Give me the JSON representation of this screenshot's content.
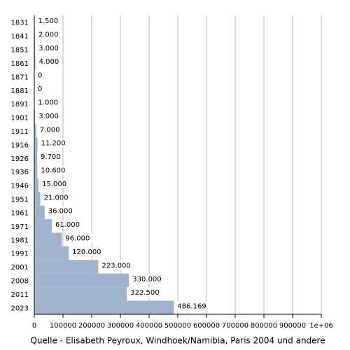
{
  "chart_data": {
    "type": "hbar",
    "categories": [
      "1831",
      "1841",
      "1851",
      "1861",
      "1871",
      "1881",
      "1891",
      "1901",
      "1911",
      "1916",
      "1926",
      "1936",
      "1946",
      "1951",
      "1961",
      "1971",
      "1981",
      "1991",
      "2001",
      "2008",
      "2011",
      "2023"
    ],
    "values": [
      1500,
      2000,
      3000,
      4000,
      0,
      0,
      1000,
      3000,
      7000,
      11200,
      9700,
      10600,
      15000,
      21000,
      36000,
      61000,
      96000,
      120000,
      223000,
      330000,
      322500,
      486169
    ],
    "value_labels": [
      "1.500",
      "2.000",
      "3.000",
      "4.000",
      "0",
      "0",
      "1.000",
      "3.000",
      "7.000",
      "11.200",
      "9.700",
      "10.600",
      "15.000",
      "21.000",
      "36.000",
      "61.000",
      "96.000",
      "120.000",
      "223.000",
      "330.000",
      "322.500",
      "486.169"
    ],
    "color": "#9fb4cc",
    "xlim": [
      0,
      1000000
    ],
    "xticks": [
      0,
      100000,
      200000,
      300000,
      400000,
      500000,
      600000,
      700000,
      800000,
      900000,
      {
        "value": 1000000,
        "label": "1e+06"
      }
    ],
    "grid": true,
    "caption": "Quelle - Elisabeth Peyroux, Windhoek/Namibia, Paris 2004 und andere"
  }
}
